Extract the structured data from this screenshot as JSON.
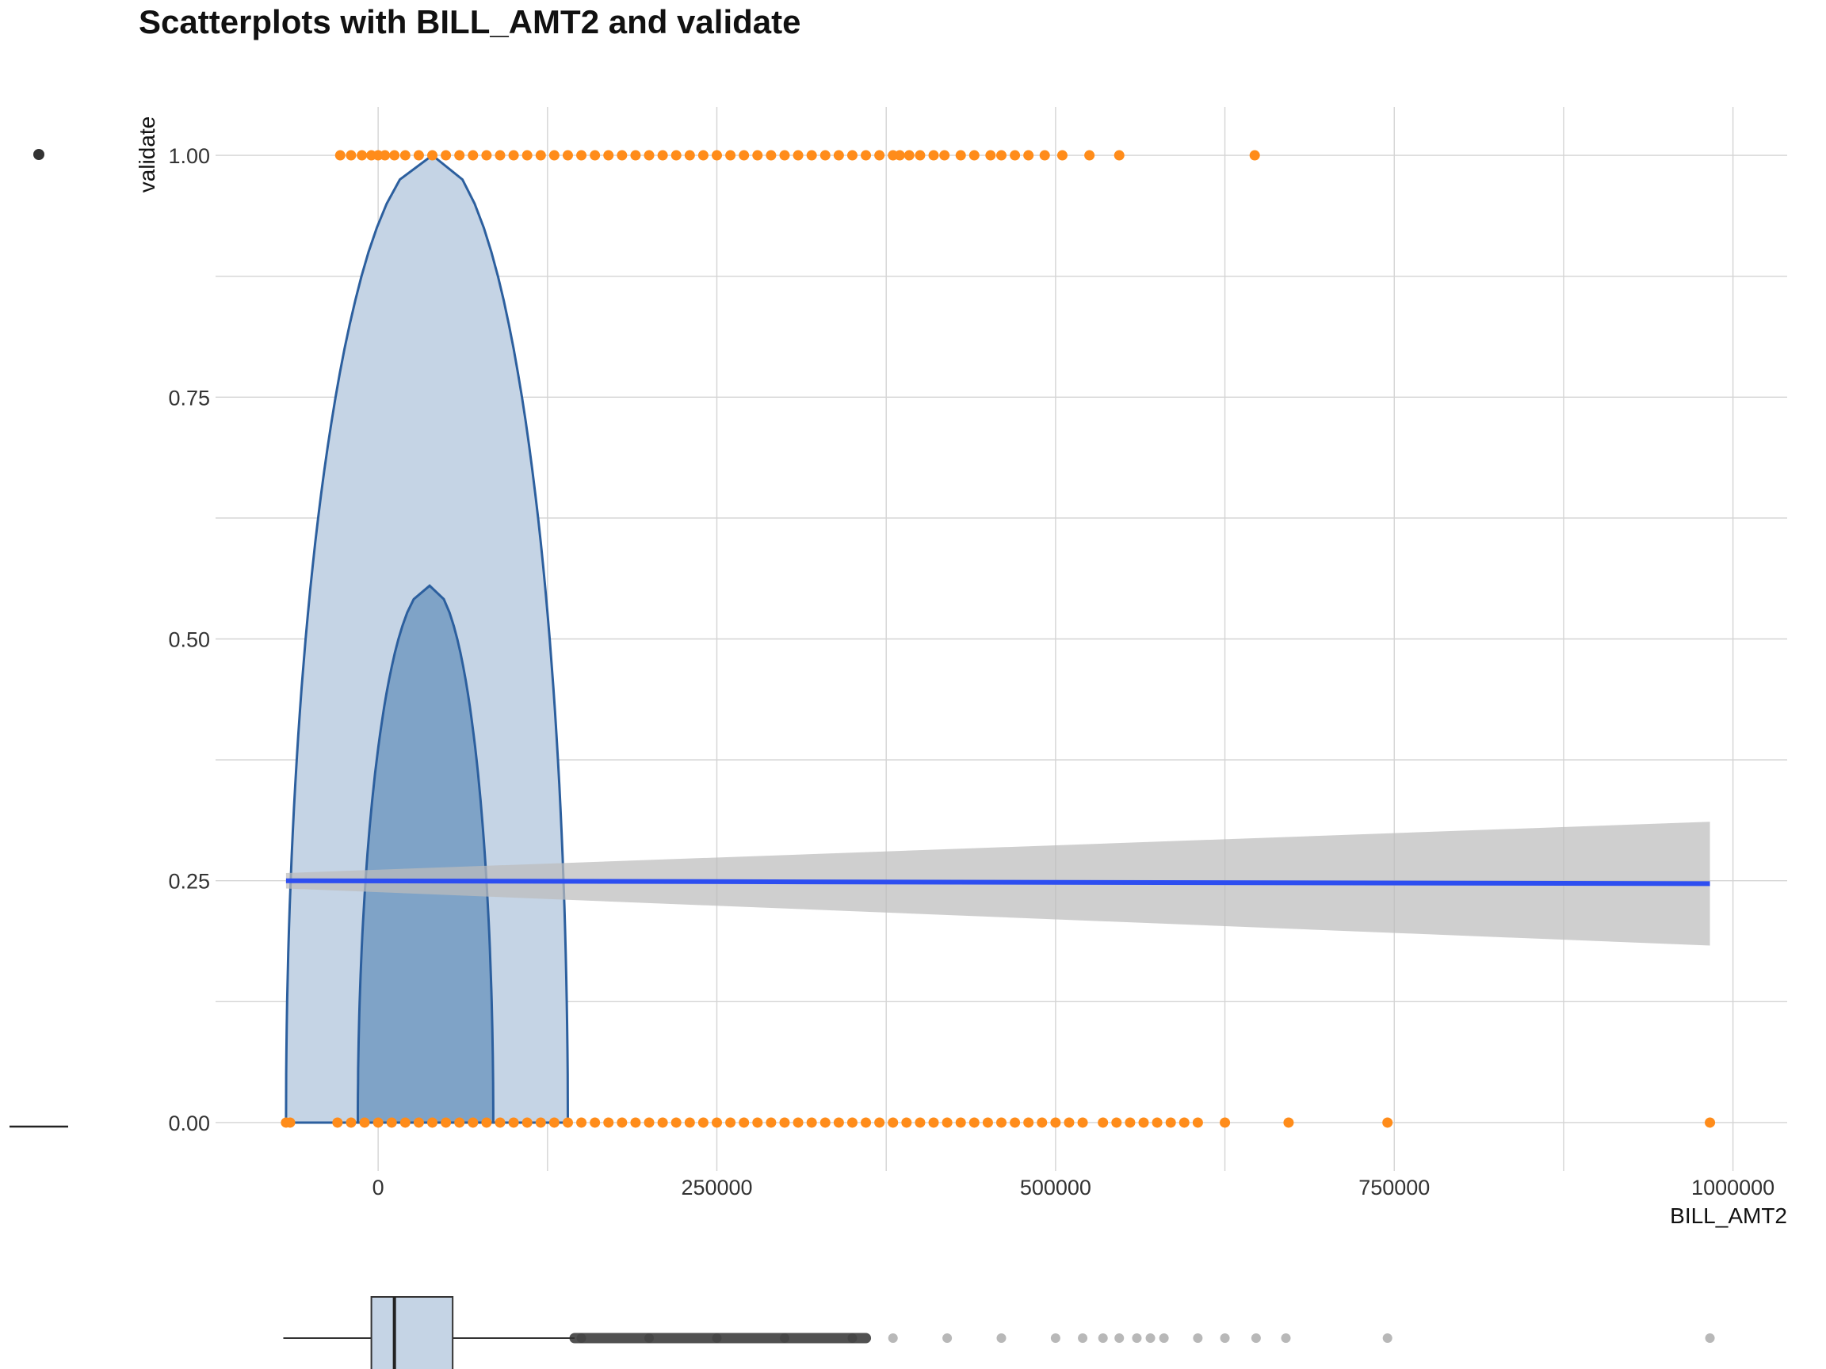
{
  "chart_data": {
    "type": "scatter",
    "title": "Scatterplots with BILL_AMT2 and validate",
    "xlabel": "BILL_AMT2",
    "ylabel": "validate",
    "xlim": [
      -120000,
      1040000
    ],
    "ylim": [
      -0.05,
      1.05
    ],
    "x_ticks": [
      0,
      250000,
      500000,
      750000,
      1000000
    ],
    "x_tick_labels": [
      "0",
      "250000",
      "500000",
      "750000",
      "1000000"
    ],
    "y_ticks": [
      0,
      0.25,
      0.5,
      0.75,
      1
    ],
    "y_tick_labels": [
      "0.00",
      "0.25",
      "0.50",
      "0.75",
      "1.00"
    ],
    "grid": true,
    "point_color": "#ff8c1a",
    "series": [
      {
        "y": 1,
        "x": [
          -28000,
          -20000,
          -12000,
          -5000,
          0,
          5000,
          12000,
          20000,
          30000,
          40000,
          50000,
          60000,
          70000,
          80000,
          90000,
          100000,
          110000,
          120000,
          130000,
          140000,
          150000,
          160000,
          170000,
          180000,
          190000,
          200000,
          210000,
          220000,
          230000,
          240000,
          250000,
          260000,
          270000,
          280000,
          290000,
          300000,
          310000,
          320000,
          330000,
          340000,
          350000,
          360000,
          370000,
          380000,
          385000,
          392000,
          400000,
          410000,
          418000,
          430000,
          440000,
          452000,
          460000,
          470000,
          480000,
          492000,
          505000,
          525000,
          547000,
          647000
        ]
      },
      {
        "y": 0,
        "x": [
          -68000,
          -65000,
          -30000,
          -20000,
          -10000,
          0,
          10000,
          20000,
          30000,
          40000,
          50000,
          60000,
          70000,
          80000,
          90000,
          100000,
          110000,
          120000,
          130000,
          140000,
          150000,
          160000,
          170000,
          180000,
          190000,
          200000,
          210000,
          220000,
          230000,
          240000,
          250000,
          260000,
          270000,
          280000,
          290000,
          300000,
          310000,
          320000,
          330000,
          340000,
          350000,
          360000,
          370000,
          380000,
          390000,
          400000,
          410000,
          420000,
          430000,
          440000,
          450000,
          460000,
          470000,
          480000,
          490000,
          500000,
          510000,
          520000,
          535000,
          545000,
          555000,
          565000,
          575000,
          585000,
          595000,
          605000,
          625000,
          672000,
          745000,
          983000
        ]
      }
    ],
    "violins": [
      {
        "name": "outer",
        "fill": "#c5d4e5",
        "stroke": "#2c5f9e",
        "x_min": -68000,
        "x_max": 140000,
        "peak_x": 40000,
        "peak_y": 1.0
      },
      {
        "name": "inner",
        "fill": "#7fa3c7",
        "stroke": "#2c5f9e",
        "x_min": -15000,
        "x_max": 85000,
        "peak_x": 38000,
        "peak_y": 0.555
      }
    ],
    "regression": {
      "color": "#2d4ef0",
      "x": [
        -68000,
        983000
      ],
      "y": [
        0.25,
        0.247
      ],
      "ci_low": [
        0.242,
        0.183
      ],
      "ci_high": [
        0.258,
        0.311
      ],
      "ci_color": "#bdbdbd"
    },
    "marginal_boxplot": {
      "q1": -5000,
      "median": 12000,
      "q3": 55000,
      "whisker_low": -70000,
      "whisker_high": 145000,
      "outliers": [
        150000,
        200000,
        250000,
        300000,
        350000,
        380000,
        420000,
        460000,
        500000,
        520000,
        535000,
        547000,
        560000,
        570000,
        580000,
        605000,
        625000,
        648000,
        670000,
        745000,
        983000
      ]
    },
    "legend": {
      "position": "left",
      "entries": [
        "point",
        "line"
      ]
    }
  }
}
